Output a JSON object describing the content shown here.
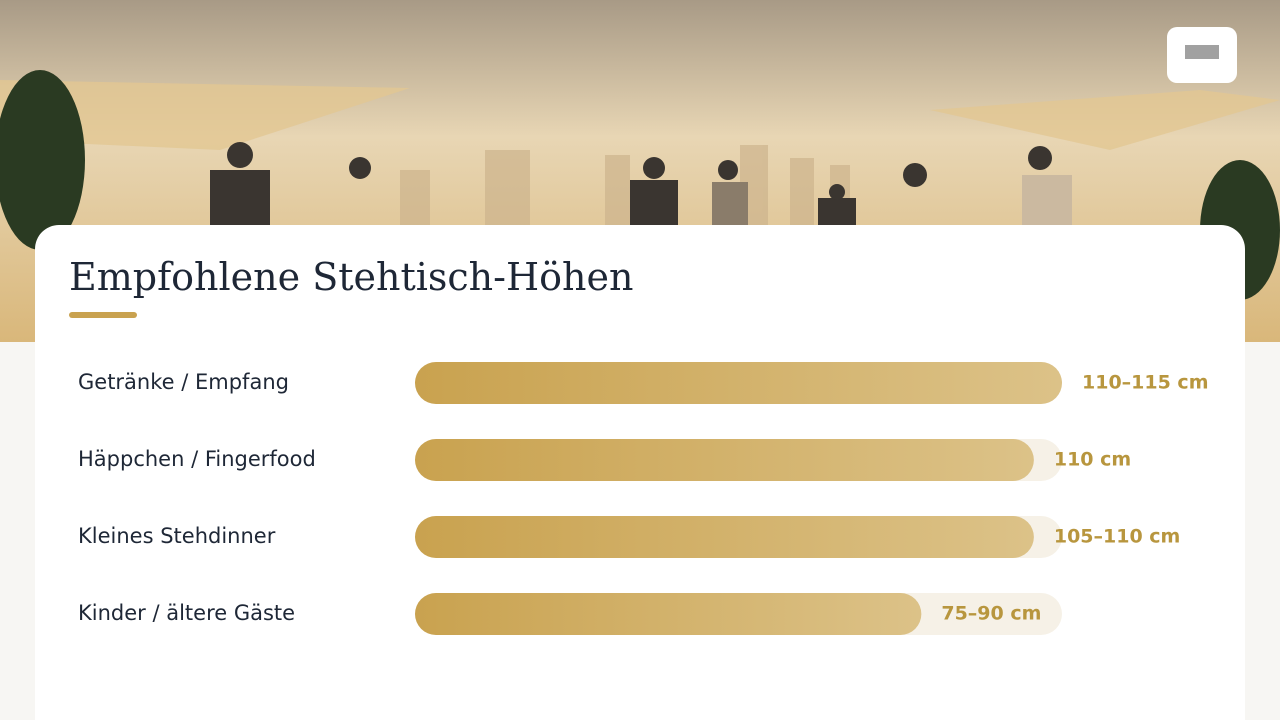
{
  "chart_data": {
    "type": "bar",
    "orientation": "horizontal",
    "title": "Empfohlene Stehtisch-Höhen",
    "categories": [
      "Getränke / Empfang",
      "Häppchen / Fingerfood",
      "Kleines Stehdinner",
      "Kinder / ältere Gäste"
    ],
    "values": [
      115,
      110,
      110,
      90
    ],
    "value_labels": [
      "110–115 cm",
      "110 cm",
      "105–110 cm",
      "75–90 cm"
    ],
    "color": "#c9a24f"
  }
}
